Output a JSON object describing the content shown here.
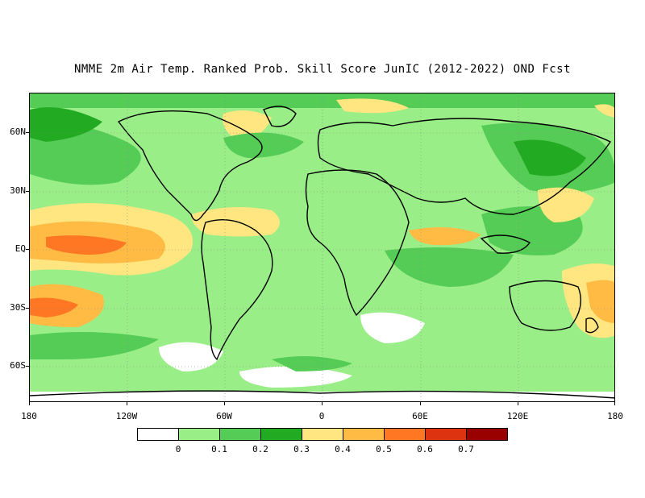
{
  "map": {
    "title": "NMME 2m Air Temp. Ranked Prob. Skill Score JunIC (2012-2022) OND Fcst",
    "y_ticks": [
      "60N",
      "30N",
      "EQ",
      "30S",
      "60S"
    ],
    "x_ticks": [
      "180",
      "120W",
      "60W",
      "0",
      "60E",
      "120E",
      "180"
    ],
    "projection": "cylindrical-equidistant",
    "lat_range": [
      -78,
      80
    ],
    "lon_range": [
      -180,
      180
    ],
    "grid": "dotted"
  },
  "legend": {
    "colors": [
      "#ffffff",
      "#99ee88",
      "#55cc55",
      "#22aa22",
      "#ffe680",
      "#ffbb44",
      "#ff7722",
      "#dd3311",
      "#990000"
    ],
    "labels": [
      "0",
      "0.1",
      "0.2",
      "0.3",
      "0.4",
      "0.5",
      "0.6",
      "0.7"
    ]
  }
}
